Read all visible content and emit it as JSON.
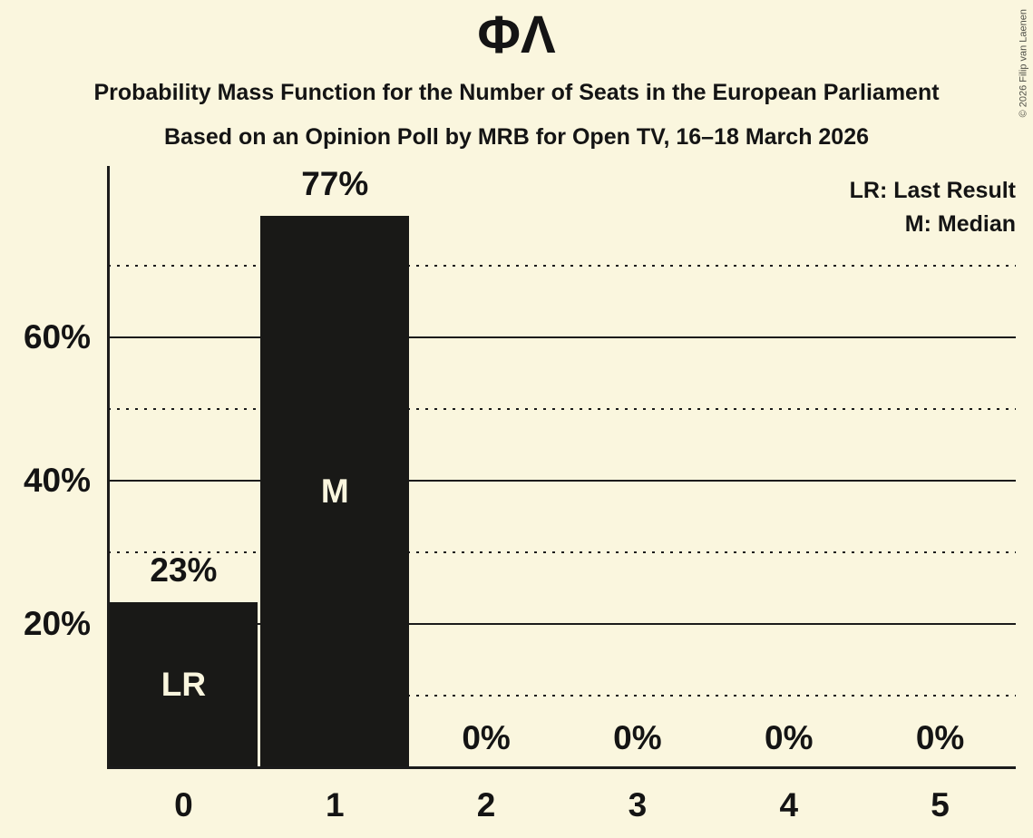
{
  "title": "ΦΛ",
  "subtitle1": "Probability Mass Function for the Number of Seats in the European Parliament",
  "subtitle2": "Based on an Opinion Poll by MRB for Open TV, 16–18 March 2026",
  "copyright": "© 2026 Filip van Laenen",
  "legend": {
    "lr": "LR: Last Result",
    "m": "M: Median"
  },
  "colors": {
    "background": "#FAF6DE",
    "bar": "#191917",
    "text": "#141414",
    "grid": "#1B1B1B",
    "bar_label": "#FAF6DE",
    "copyright": "#4F4F47"
  },
  "chart_data": {
    "type": "bar",
    "title": "ΦΛ",
    "subtitle": "Probability Mass Function for the Number of Seats in the European Parliament",
    "source_line": "Based on an Opinion Poll by MRB for Open TV, 16–18 March 2026",
    "categories": [
      "0",
      "1",
      "2",
      "3",
      "4",
      "5"
    ],
    "values": [
      23,
      77,
      0,
      0,
      0,
      0
    ],
    "value_labels": [
      "23%",
      "77%",
      "0%",
      "0%",
      "0%",
      "0%"
    ],
    "bar_annotations": [
      "LR",
      "M",
      "",
      "",
      "",
      ""
    ],
    "legend_entries": [
      "LR: Last Result",
      "M: Median"
    ],
    "legend_position": "top-right",
    "xlabel": "",
    "ylabel": "",
    "ylim": [
      0,
      84
    ],
    "yticks": [
      {
        "value": 20,
        "label": "20%"
      },
      {
        "value": 40,
        "label": "40%"
      },
      {
        "value": 60,
        "label": "60%"
      }
    ],
    "gridlines": {
      "solid": [
        20,
        40,
        60
      ],
      "dotted": [
        10,
        30,
        50,
        70
      ]
    },
    "grid": true
  }
}
